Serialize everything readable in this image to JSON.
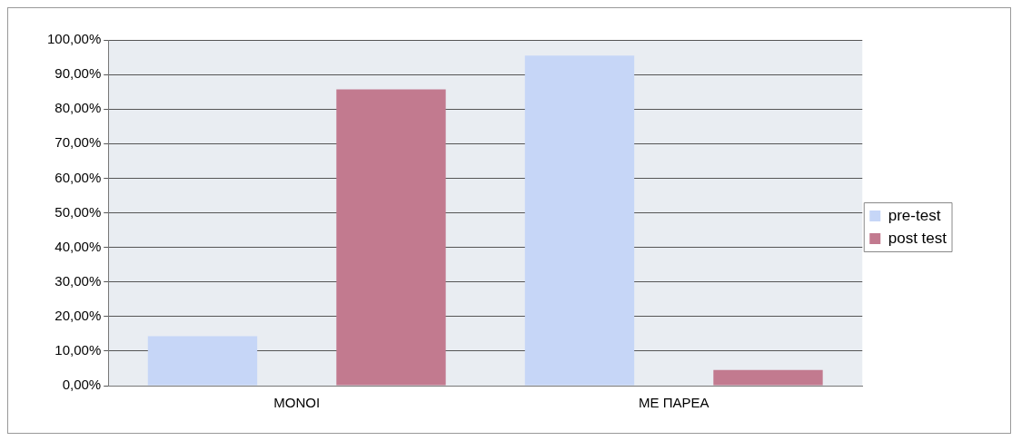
{
  "chart_data": {
    "type": "bar",
    "categories": [
      "ΜΟΝΟΙ",
      "ΜΕ ΠΑΡΕΑ"
    ],
    "series": [
      {
        "name": "pre-test",
        "color": "#c6d6f7",
        "values": [
          14.3,
          95.5
        ]
      },
      {
        "name": "post test",
        "color": "#c27a8f",
        "values": [
          85.7,
          4.5
        ]
      }
    ],
    "ylim": [
      0,
      100
    ],
    "yticks": [
      {
        "value": 0,
        "label": "0,00%"
      },
      {
        "value": 10,
        "label": "10,00%"
      },
      {
        "value": 20,
        "label": "20,00%"
      },
      {
        "value": 30,
        "label": "30,00%"
      },
      {
        "value": 40,
        "label": "40,00%"
      },
      {
        "value": 50,
        "label": "50,00%"
      },
      {
        "value": 60,
        "label": "60,00%"
      },
      {
        "value": 70,
        "label": "70,00%"
      },
      {
        "value": 80,
        "label": "80,00%"
      },
      {
        "value": 90,
        "label": "90,00%"
      },
      {
        "value": 100,
        "label": "100,00%"
      }
    ],
    "grid": "y",
    "legend": "right"
  }
}
